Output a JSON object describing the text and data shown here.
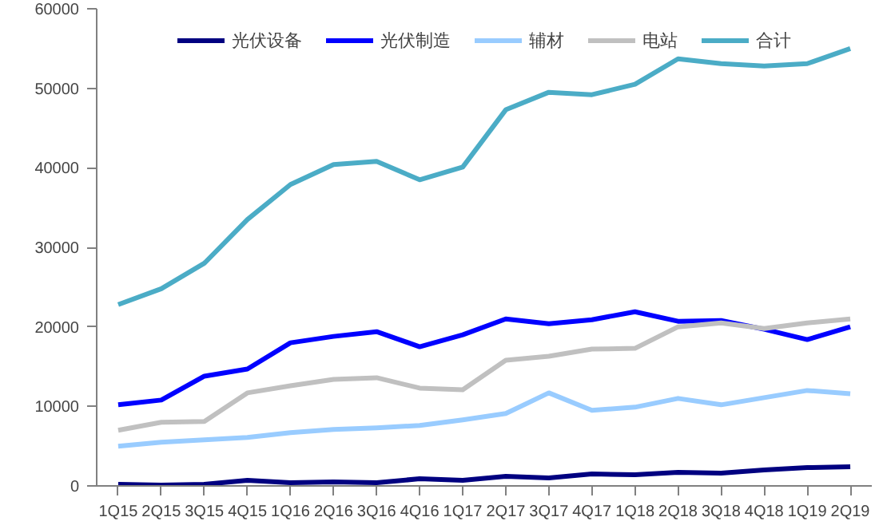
{
  "chart_data": {
    "type": "line",
    "categories": [
      "1Q15",
      "2Q15",
      "3Q15",
      "4Q15",
      "1Q16",
      "2Q16",
      "3Q16",
      "4Q16",
      "1Q17",
      "2Q17",
      "3Q17",
      "4Q17",
      "1Q18",
      "2Q18",
      "3Q18",
      "4Q18",
      "1Q19",
      "2Q19"
    ],
    "series": [
      {
        "name": "光伏设备",
        "color": "#000080",
        "values": [
          200,
          100,
          200,
          700,
          400,
          500,
          400,
          900,
          700,
          1200,
          1000,
          1500,
          1400,
          1700,
          1600,
          2000,
          2300,
          2400
        ]
      },
      {
        "name": "光伏制造",
        "color": "#0000ff",
        "values": [
          10200,
          10800,
          13800,
          14700,
          18000,
          18800,
          19400,
          17500,
          19000,
          21000,
          20400,
          20900,
          21900,
          20700,
          20800,
          19700,
          18400,
          20000
        ]
      },
      {
        "name": "辅材",
        "color": "#99ccff",
        "values": [
          5000,
          5500,
          5800,
          6100,
          6700,
          7100,
          7300,
          7600,
          8300,
          9100,
          11700,
          9500,
          9900,
          11000,
          10200,
          11100,
          12000,
          11600
        ]
      },
      {
        "name": "电站",
        "color": "#c0c0c0",
        "values": [
          7000,
          8000,
          8100,
          11700,
          12600,
          13400,
          13600,
          12300,
          12100,
          15800,
          16300,
          17200,
          17300,
          20000,
          20500,
          19800,
          20500,
          21000
        ]
      },
      {
        "name": "合计",
        "color": "#4bacc6",
        "values": [
          22800,
          24800,
          28000,
          33500,
          37900,
          40400,
          40800,
          38500,
          40100,
          47300,
          49500,
          49200,
          50500,
          53700,
          53100,
          52800,
          53100,
          55000
        ]
      }
    ],
    "ylim": [
      0,
      60000
    ],
    "yticks": [
      0,
      10000,
      20000,
      30000,
      40000,
      50000,
      60000
    ],
    "grid": false,
    "legend": "top",
    "marker": "none",
    "line_style": "solid"
  }
}
